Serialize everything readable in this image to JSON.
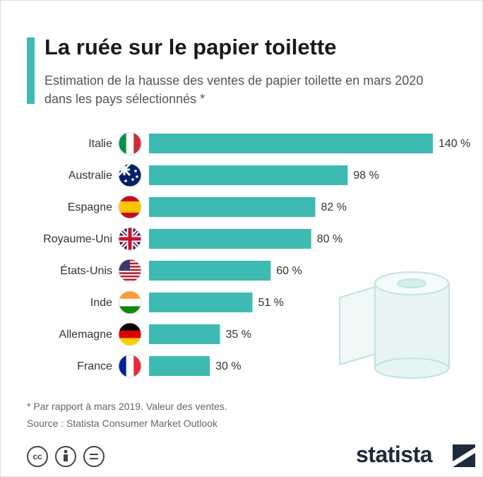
{
  "chart_data": {
    "type": "bar",
    "orientation": "horizontal",
    "title": "La ruée sur le papier toilette",
    "subtitle": "Estimation de la hausse des ventes de papier toilette en mars 2020 dans les pays sélectionnés *",
    "categories": [
      "Italie",
      "Australie",
      "Espagne",
      "Royaume-Uni",
      "États-Unis",
      "Inde",
      "Allemagne",
      "France"
    ],
    "values": [
      140,
      98,
      82,
      80,
      60,
      51,
      35,
      30
    ],
    "value_labels": [
      "140 %",
      "98 %",
      "82 %",
      "80 %",
      "60 %",
      "51 %",
      "35 %",
      "30 %"
    ],
    "color": "#3dbab1",
    "footnote": "* Par rapport à mars 2019. Valeur des ventes.",
    "source": "Source : Statista Consumer Market Outlook",
    "logo": "statista"
  }
}
